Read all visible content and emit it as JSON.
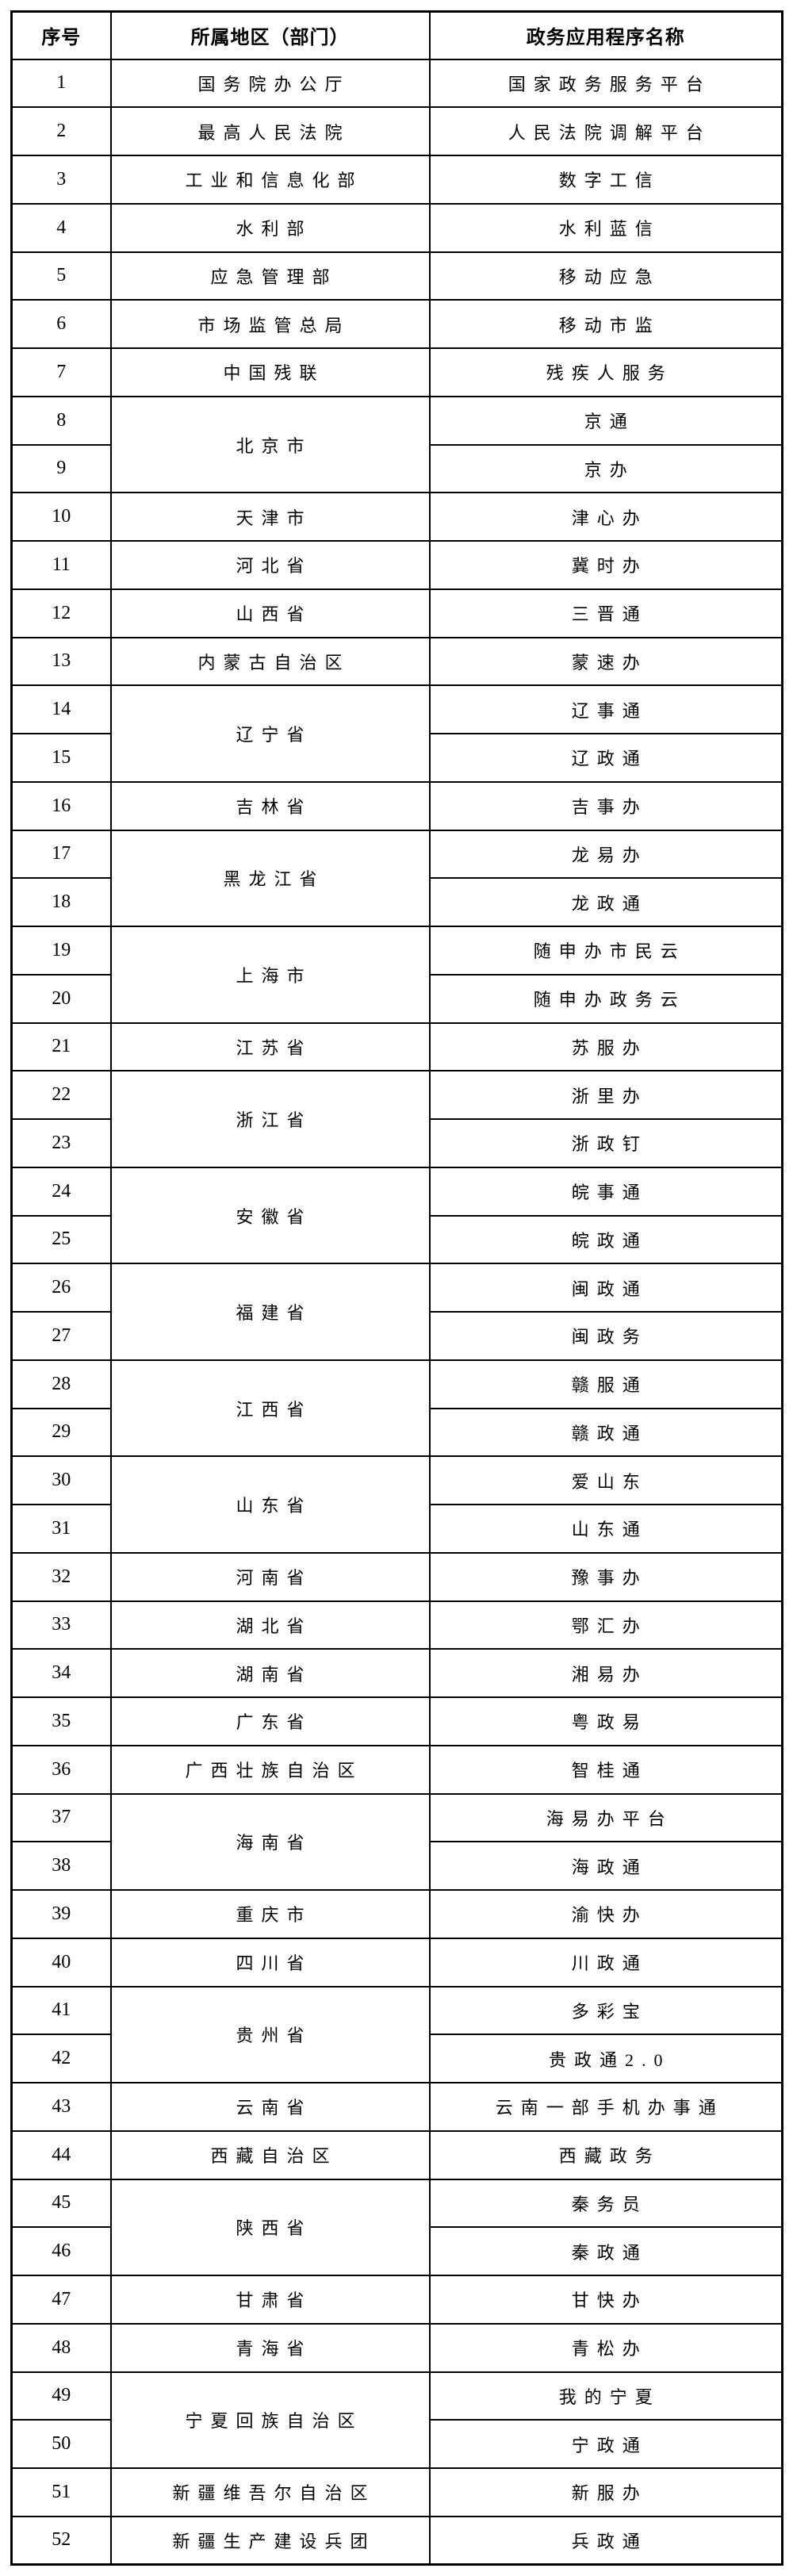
{
  "page": {
    "background_color": "#ffffff",
    "text_color": "#000000",
    "border_color": "#000000"
  },
  "table": {
    "headers": [
      {
        "label": "序号"
      },
      {
        "label": "所属地区（部门）"
      },
      {
        "label": "政务应用程序名称"
      }
    ],
    "rows": [
      {
        "no": "1",
        "region": "国务院办公厅",
        "rowspan": 1,
        "app": "国家政务服务平台"
      },
      {
        "no": "2",
        "region": "最高人民法院",
        "rowspan": 1,
        "app": "人民法院调解平台"
      },
      {
        "no": "3",
        "region": "工业和信息化部",
        "rowspan": 1,
        "app": "数字工信"
      },
      {
        "no": "4",
        "region": "水利部",
        "rowspan": 1,
        "app": "水利蓝信"
      },
      {
        "no": "5",
        "region": "应急管理部",
        "rowspan": 1,
        "app": "移动应急"
      },
      {
        "no": "6",
        "region": "市场监管总局",
        "rowspan": 1,
        "app": "移动市监"
      },
      {
        "no": "7",
        "region": "中国残联",
        "rowspan": 1,
        "app": "残疾人服务"
      },
      {
        "no": "8",
        "region": "北京市",
        "rowspan": 2,
        "app": "京通"
      },
      {
        "no": "9",
        "app": "京办"
      },
      {
        "no": "10",
        "region": "天津市",
        "rowspan": 1,
        "app": "津心办"
      },
      {
        "no": "11",
        "region": "河北省",
        "rowspan": 1,
        "app": "冀时办"
      },
      {
        "no": "12",
        "region": "山西省",
        "rowspan": 1,
        "app": "三晋通"
      },
      {
        "no": "13",
        "region": "内蒙古自治区",
        "rowspan": 1,
        "app": "蒙速办"
      },
      {
        "no": "14",
        "region": "辽宁省",
        "rowspan": 2,
        "app": "辽事通"
      },
      {
        "no": "15",
        "app": "辽政通"
      },
      {
        "no": "16",
        "region": "吉林省",
        "rowspan": 1,
        "app": "吉事办"
      },
      {
        "no": "17",
        "region": "黑龙江省",
        "rowspan": 2,
        "app": "龙易办"
      },
      {
        "no": "18",
        "app": "龙政通"
      },
      {
        "no": "19",
        "region": "上海市",
        "rowspan": 2,
        "app": "随申办市民云"
      },
      {
        "no": "20",
        "app": "随申办政务云"
      },
      {
        "no": "21",
        "region": "江苏省",
        "rowspan": 1,
        "app": "苏服办"
      },
      {
        "no": "22",
        "region": "浙江省",
        "rowspan": 2,
        "app": "浙里办"
      },
      {
        "no": "23",
        "app": "浙政钉"
      },
      {
        "no": "24",
        "region": "安徽省",
        "rowspan": 2,
        "app": "皖事通"
      },
      {
        "no": "25",
        "app": "皖政通"
      },
      {
        "no": "26",
        "region": "福建省",
        "rowspan": 2,
        "app": "闽政通"
      },
      {
        "no": "27",
        "app": "闽政务"
      },
      {
        "no": "28",
        "region": "江西省",
        "rowspan": 2,
        "app": "赣服通"
      },
      {
        "no": "29",
        "app": "赣政通"
      },
      {
        "no": "30",
        "region": "山东省",
        "rowspan": 2,
        "app": "爱山东"
      },
      {
        "no": "31",
        "app": "山东通"
      },
      {
        "no": "32",
        "region": "河南省",
        "rowspan": 1,
        "app": "豫事办"
      },
      {
        "no": "33",
        "region": "湖北省",
        "rowspan": 1,
        "app": "鄂汇办"
      },
      {
        "no": "34",
        "region": "湖南省",
        "rowspan": 1,
        "app": "湘易办"
      },
      {
        "no": "35",
        "region": "广东省",
        "rowspan": 1,
        "app": "粤政易"
      },
      {
        "no": "36",
        "region": "广西壮族自治区",
        "rowspan": 1,
        "app": "智桂通"
      },
      {
        "no": "37",
        "region": "海南省",
        "rowspan": 2,
        "app": "海易办平台"
      },
      {
        "no": "38",
        "app": "海政通"
      },
      {
        "no": "39",
        "region": "重庆市",
        "rowspan": 1,
        "app": "渝快办"
      },
      {
        "no": "40",
        "region": "四川省",
        "rowspan": 1,
        "app": "川政通"
      },
      {
        "no": "41",
        "region": "贵州省",
        "rowspan": 2,
        "app": "多彩宝"
      },
      {
        "no": "42",
        "app": "贵政通2.0"
      },
      {
        "no": "43",
        "region": "云南省",
        "rowspan": 1,
        "app": "云南一部手机办事通"
      },
      {
        "no": "44",
        "region": "西藏自治区",
        "rowspan": 1,
        "app": "西藏政务"
      },
      {
        "no": "45",
        "region": "陕西省",
        "rowspan": 2,
        "app": "秦务员"
      },
      {
        "no": "46",
        "app": "秦政通"
      },
      {
        "no": "47",
        "region": "甘肃省",
        "rowspan": 1,
        "app": "甘快办"
      },
      {
        "no": "48",
        "region": "青海省",
        "rowspan": 1,
        "app": "青松办"
      },
      {
        "no": "49",
        "region": "宁夏回族自治区",
        "rowspan": 2,
        "app": "我的宁夏"
      },
      {
        "no": "50",
        "app": "宁政通"
      },
      {
        "no": "51",
        "region": "新疆维吾尔自治区",
        "rowspan": 1,
        "app": "新服办"
      },
      {
        "no": "52",
        "region": "新疆生产建设兵团",
        "rowspan": 1,
        "app": "兵政通"
      }
    ]
  }
}
